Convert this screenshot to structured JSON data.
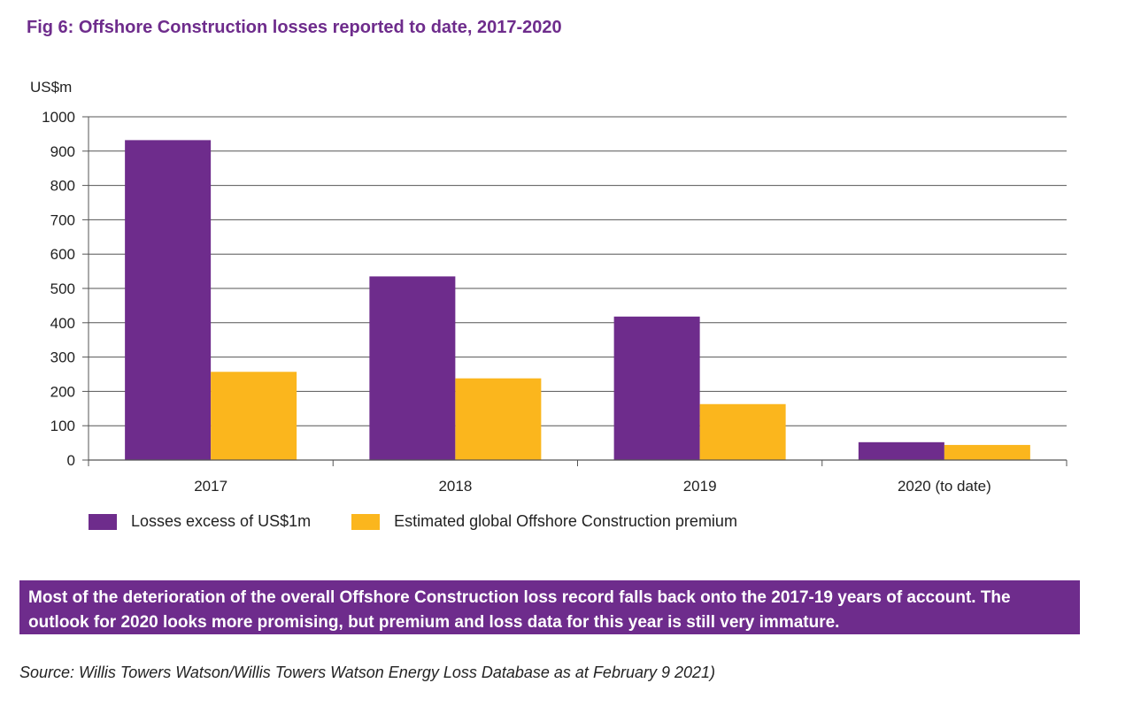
{
  "figure": {
    "title": "Fig 6: Offshore Construction losses reported to date, 2017-2020",
    "callout": "Most of the deterioration of the overall Offshore Construction loss record falls back onto the 2017-19 years of account. The outlook for 2020 looks more promising, but premium and loss data for this year is still very immature.",
    "source": "Source: Willis Towers Watson/Willis Towers Watson Energy Loss Database as at February 9 2021)"
  },
  "colors": {
    "accent": "#6e2c8c",
    "losses": "#6e2c8c",
    "premium": "#fbb61d",
    "gridline": "#555555"
  },
  "chart_data": {
    "type": "bar",
    "title": "Fig 6: Offshore Construction losses reported to date, 2017-2020",
    "ylabel": "US$m",
    "xlabel": "",
    "categories": [
      "2017",
      "2018",
      "2019",
      "2020 (to date)"
    ],
    "series": [
      {
        "name": "Losses excess of US$1m",
        "values": [
          932,
          535,
          418,
          52
        ]
      },
      {
        "name": "Estimated global Offshore Construction premium",
        "values": [
          257,
          238,
          163,
          44
        ]
      }
    ],
    "ylim": [
      0,
      1000
    ],
    "yticks": [
      0,
      100,
      200,
      300,
      400,
      500,
      600,
      700,
      800,
      900,
      1000
    ],
    "grid": true,
    "legend": "bottom-left"
  }
}
